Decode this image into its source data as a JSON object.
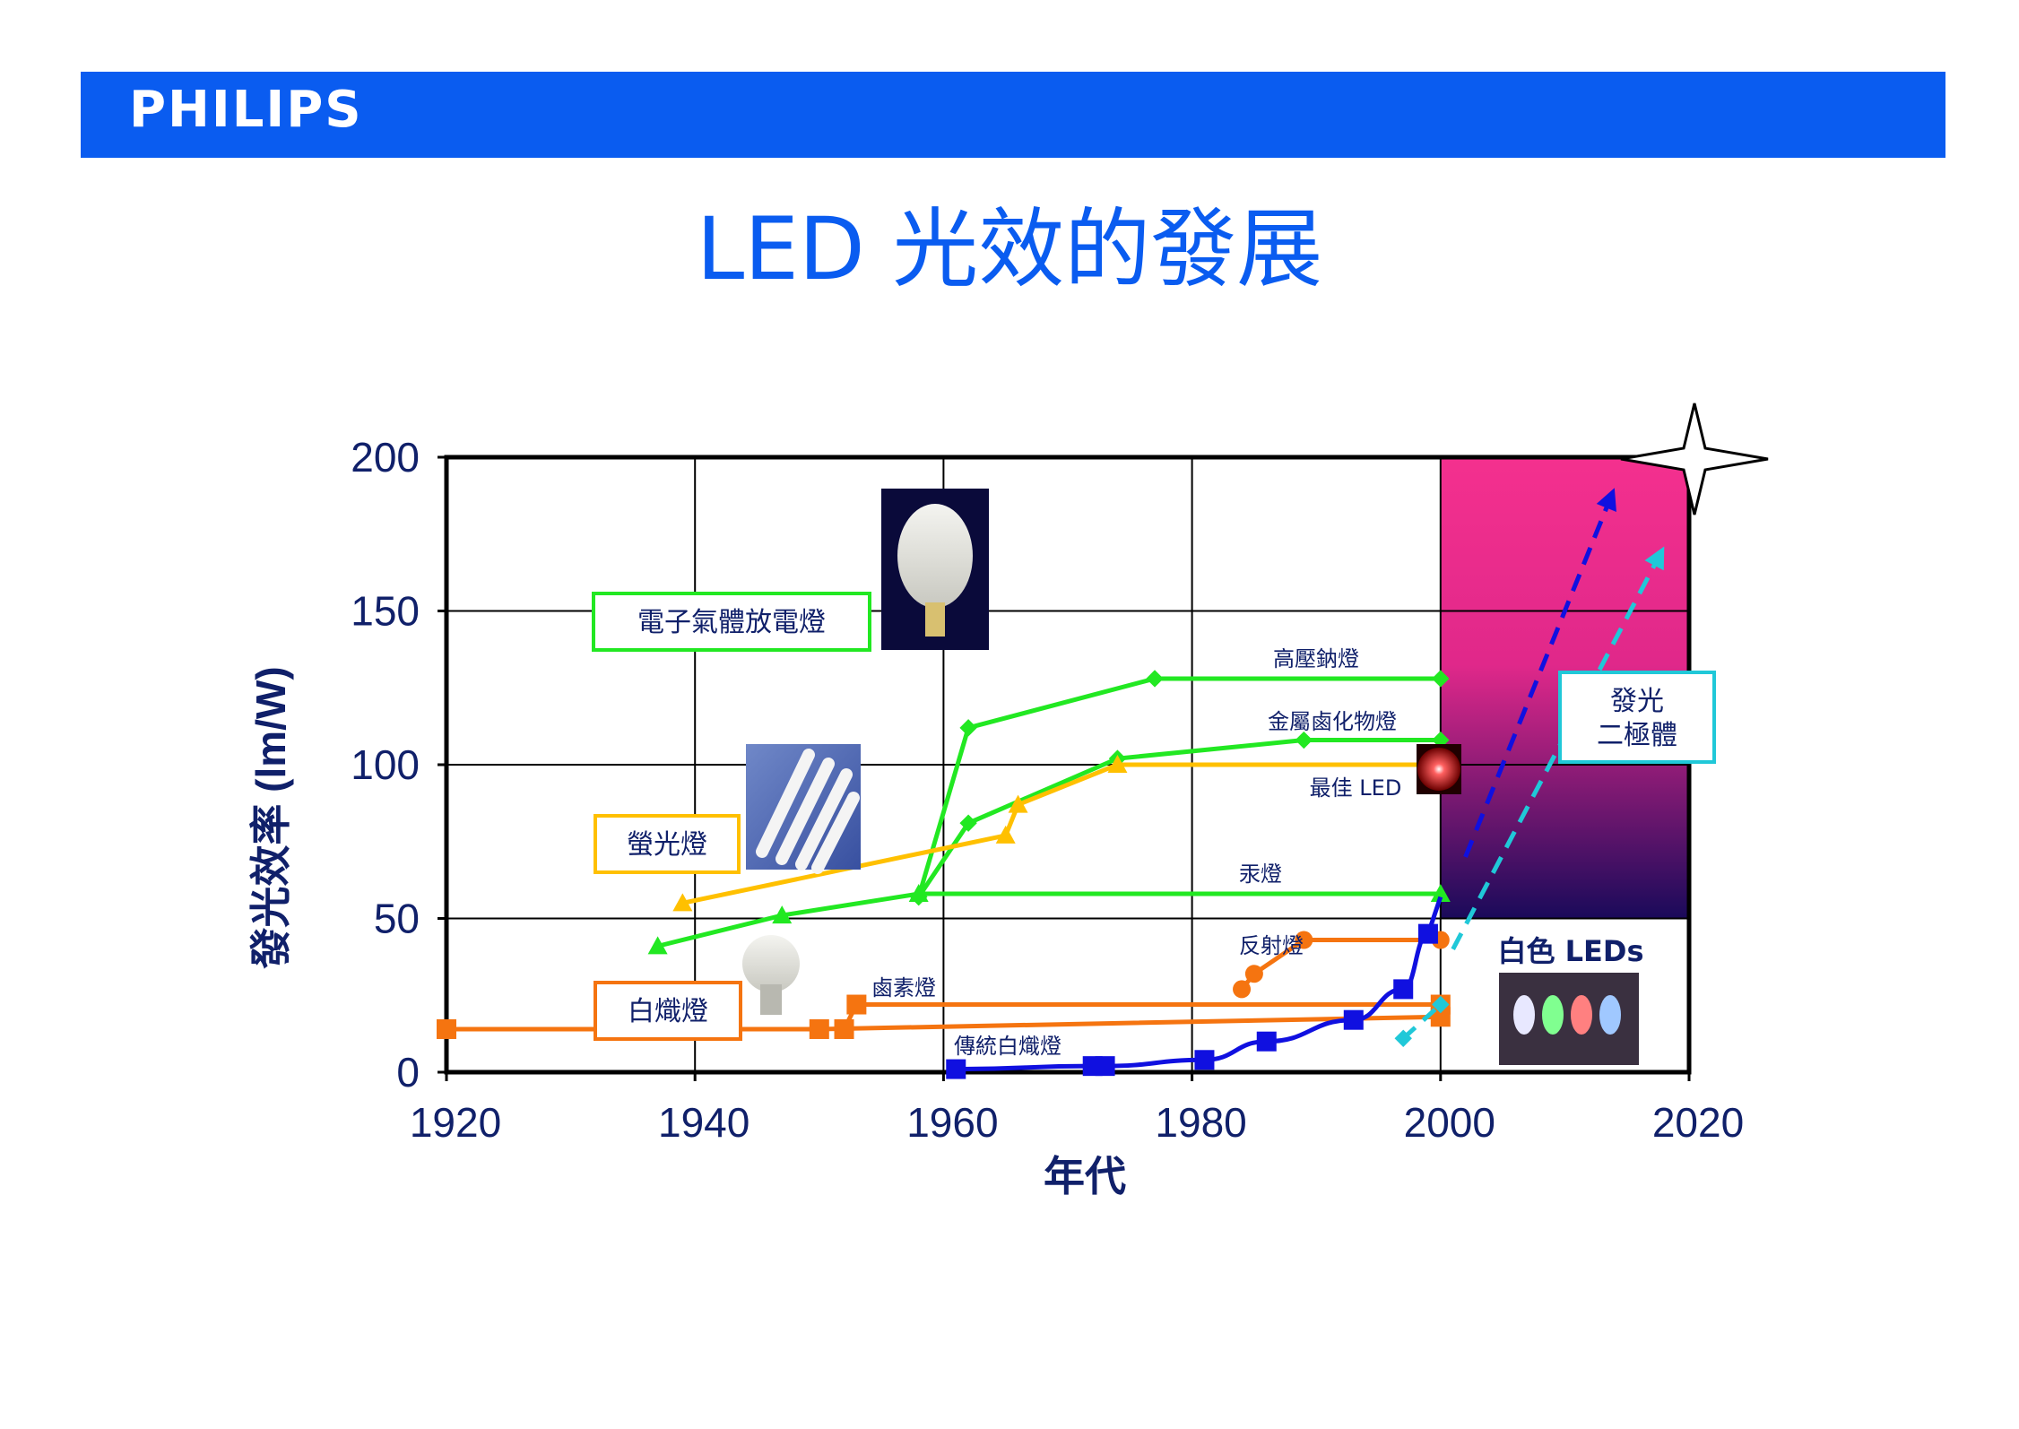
{
  "header": {
    "brand": "PHILIPS",
    "title": "LED 光效的發展"
  },
  "colors": {
    "brand_blue": "#0a5cf0",
    "green": "#22e822",
    "yellow": "#ffc000",
    "orange": "#f57410",
    "blue": "#1010e0",
    "cyan": "#20c8d8",
    "magenta": "#f0288a",
    "navy": "#101060",
    "axis_text": "#10206a"
  },
  "chart_data": {
    "type": "line",
    "title": "",
    "xlabel": "年代",
    "ylabel": "發光效率 (lm/W)",
    "xlim": [
      1920,
      2020
    ],
    "ylim": [
      0,
      200
    ],
    "x_ticks": [
      1920,
      1940,
      1960,
      1980,
      2000,
      2020
    ],
    "y_ticks": [
      0,
      50,
      100,
      150,
      200
    ],
    "grid": true,
    "series": [
      {
        "name": "高壓鈉燈",
        "color": "green",
        "marker": "diamond",
        "points": [
          [
            1958,
            57
          ],
          [
            1962,
            112
          ],
          [
            1977,
            128
          ],
          [
            2000,
            128
          ]
        ]
      },
      {
        "name": "金屬鹵化物燈",
        "color": "green",
        "marker": "diamond",
        "points": [
          [
            1958,
            57
          ],
          [
            1962,
            81
          ],
          [
            1974,
            102
          ],
          [
            1989,
            108
          ],
          [
            2000,
            108
          ]
        ]
      },
      {
        "name": "汞燈",
        "color": "green",
        "marker": "triangle",
        "points": [
          [
            1937,
            41
          ],
          [
            1947,
            51
          ],
          [
            1958,
            58
          ],
          [
            2000,
            58
          ]
        ]
      },
      {
        "name": "最佳 LED",
        "color": "yellow",
        "marker": "triangle",
        "points": [
          [
            1939,
            55
          ],
          [
            1965,
            77
          ],
          [
            1966,
            87
          ],
          [
            1974,
            100
          ],
          [
            2000,
            100
          ]
        ]
      },
      {
        "name": "反射燈",
        "color": "orange",
        "marker": "circle",
        "points": [
          [
            1984,
            27
          ],
          [
            1985,
            32
          ],
          [
            1989,
            43
          ],
          [
            2000,
            43
          ]
        ]
      },
      {
        "name": "鹵素燈",
        "color": "orange",
        "marker": "square",
        "points": [
          [
            1952,
            14
          ],
          [
            1953,
            22
          ],
          [
            2000,
            22
          ]
        ]
      },
      {
        "name": "白熾燈",
        "color": "orange",
        "marker": "square",
        "points": [
          [
            1920,
            14
          ],
          [
            1950,
            14
          ],
          [
            2000,
            18
          ]
        ]
      },
      {
        "name": "傳統白熾燈",
        "color": "blue",
        "marker": "square",
        "points": [
          [
            1961,
            1
          ],
          [
            1972,
            2
          ],
          [
            1973,
            2
          ],
          [
            1981,
            4
          ],
          [
            1986,
            10
          ],
          [
            1993,
            17
          ],
          [
            1997,
            27
          ],
          [
            1999,
            45
          ]
        ]
      },
      {
        "name": "白色 LEDs",
        "color": "cyan",
        "marker": "diamond",
        "points": [
          [
            1997,
            11
          ],
          [
            2000,
            22
          ]
        ]
      }
    ],
    "trend_arrows": [
      {
        "color": "blue",
        "from": [
          2002,
          70
        ],
        "to": [
          2014,
          190
        ]
      },
      {
        "color": "cyan",
        "from": [
          2001,
          40
        ],
        "to": [
          2018,
          171
        ]
      }
    ],
    "gradient_region": {
      "x": [
        2000,
        2020
      ],
      "y": [
        50,
        200
      ]
    },
    "annotations": {
      "hid": "電子氣體放電燈",
      "fluorescent": "螢光燈",
      "incandescent_box": "白熾燈",
      "led_box_line1": "發光",
      "led_box_line2": "二極體",
      "white_leds": "白色 LEDs",
      "best_led": "最佳 LED",
      "sodium": "高壓鈉燈",
      "metal_halide": "金屬鹵化物燈",
      "mercury": "汞燈",
      "reflector": "反射燈",
      "halogen": "鹵素燈",
      "traditional": "傳統白熾燈"
    }
  }
}
